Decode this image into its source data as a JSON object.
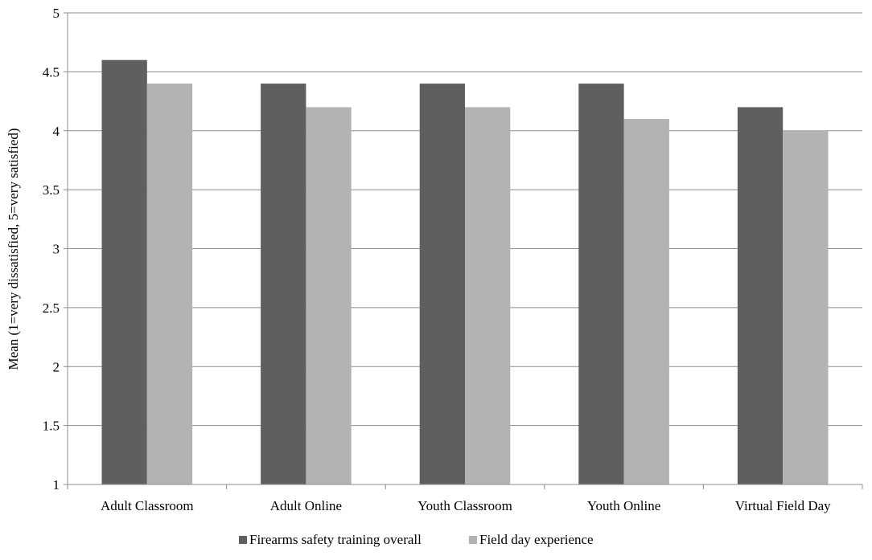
{
  "chart_data": {
    "type": "bar",
    "title": "",
    "xlabel": "",
    "ylabel": "Mean (1=very dissatisfied, 5=very satisfied)",
    "ylim": [
      1,
      5
    ],
    "yticks": [
      "1",
      "1.5",
      "2",
      "2.5",
      "3",
      "3.5",
      "4",
      "4.5",
      "5"
    ],
    "categories": [
      "Adult Classroom",
      "Adult Online",
      "Youth Classroom",
      "Youth Online",
      "Virtual Field Day"
    ],
    "series": [
      {
        "name": "Firearms safety training overall",
        "values": [
          4.6,
          4.4,
          4.4,
          4.4,
          4.2
        ],
        "color": "#5f5f5f"
      },
      {
        "name": "Field day experience",
        "values": [
          4.4,
          4.2,
          4.2,
          4.1,
          4.0
        ],
        "color": "#b3b3b3"
      }
    ],
    "grid": true,
    "legend_position": "bottom"
  }
}
